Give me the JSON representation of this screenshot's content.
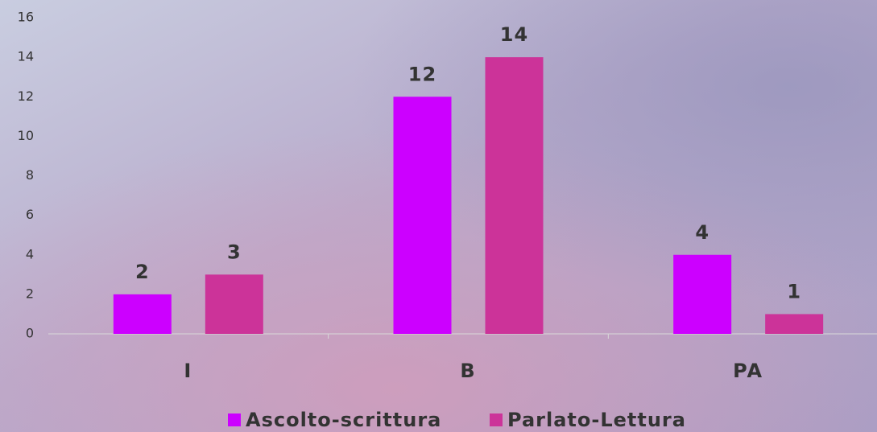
{
  "chart_data": {
    "type": "bar",
    "categories": [
      "I",
      "B",
      "PA"
    ],
    "series": [
      {
        "name": "Ascolto-scrittura",
        "color": "#cc00ff",
        "values": [
          2,
          12,
          4
        ]
      },
      {
        "name": "Parlato-Lettura",
        "color": "#cc3399",
        "values": [
          3,
          14,
          1
        ]
      }
    ],
    "ylim": [
      0,
      16
    ],
    "yticks": [
      0,
      2,
      4,
      6,
      8,
      10,
      12,
      14,
      16
    ],
    "grid": false,
    "legend": "bottom"
  }
}
